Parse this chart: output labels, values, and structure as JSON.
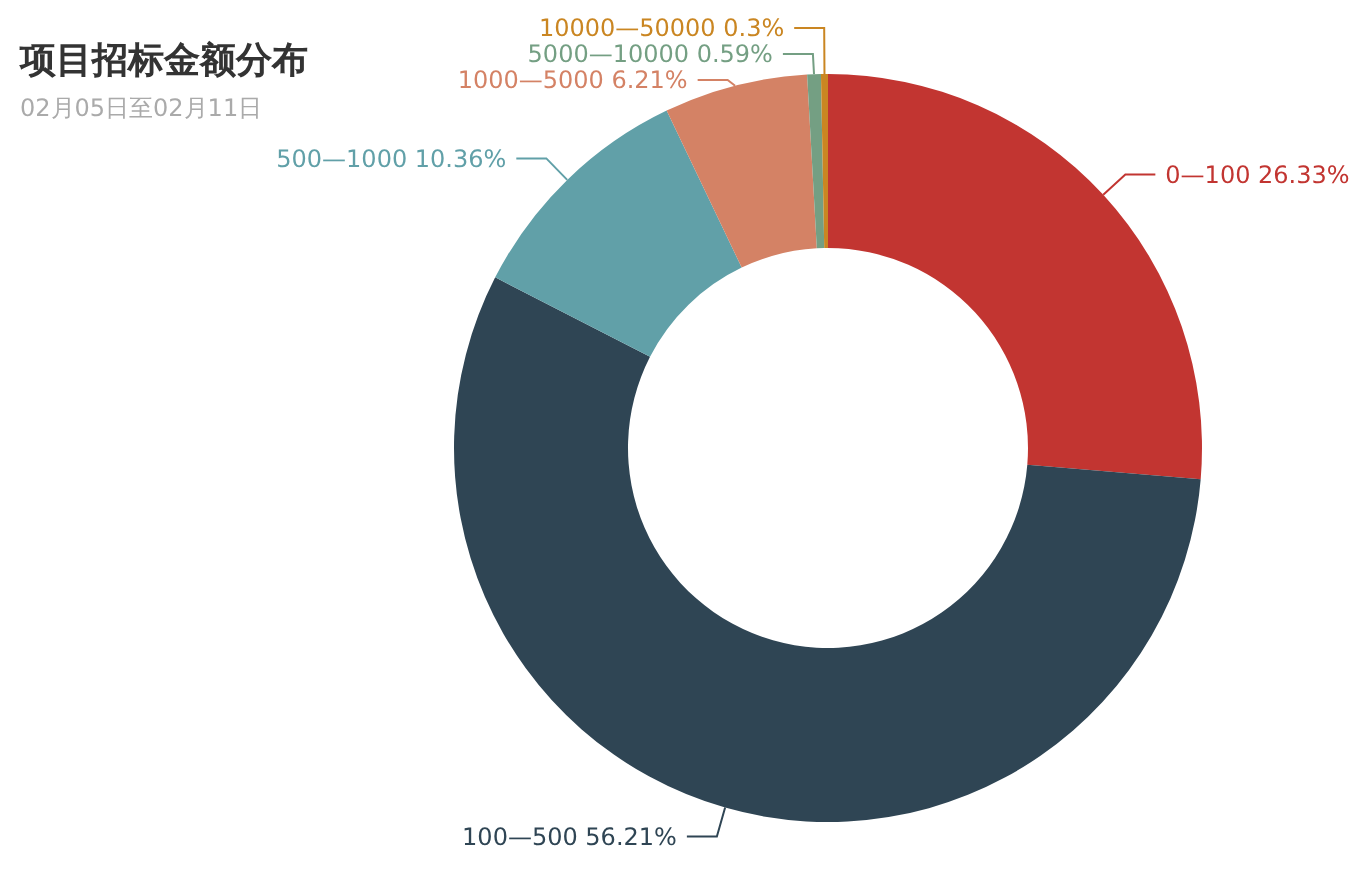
{
  "chart_data": {
    "type": "donut",
    "title": "项目招标金额分布",
    "subtitle": "02月05日至02月11日",
    "categories": [
      "0—100",
      "100—500",
      "500—1000",
      "1000—5000",
      "5000—10000",
      "10000—50000"
    ],
    "values": [
      26.33,
      56.21,
      10.36,
      6.21,
      0.59,
      0.3
    ],
    "colors": [
      "#c23531",
      "#2f4554",
      "#61a0a8",
      "#d48265",
      "#749f83",
      "#ca8622"
    ],
    "value_labels": [
      "26.33%",
      "56.21%",
      "10.36%",
      "6.21%",
      "0.59%",
      "0.3%"
    ]
  }
}
